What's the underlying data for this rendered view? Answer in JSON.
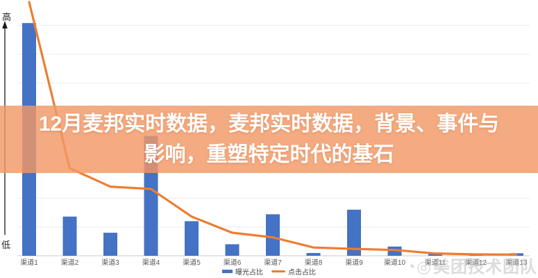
{
  "banner": {
    "line1": "12月麦邦实时数据，麦邦实时数据，背景、事件与",
    "line2": "影响，重塑特定时代的基石",
    "bg_color": "rgba(242,152,102,0.82)",
    "text_color": "#ffffff"
  },
  "axis": {
    "high_label": "高",
    "low_label": "低"
  },
  "watermark": {
    "icons": "◔◎",
    "text": "美团技术团队"
  },
  "chart_data": {
    "type": "bar",
    "note": "combo chart: blue bars + orange line, qualitative y-axis from 低 (bottom) to 高 (top), values normalized 0-100",
    "categories": [
      "渠道1",
      "渠道2",
      "渠道3",
      "渠道4",
      "渠道5",
      "渠道6",
      "渠道7",
      "渠道8",
      "渠道9",
      "渠道10",
      "渠道11",
      "渠道12",
      "渠道13"
    ],
    "series": [
      {
        "name": "曝光占比",
        "type": "bar",
        "color": "#4472C4",
        "values": [
          101,
          17,
          10,
          52,
          15,
          5,
          18,
          1.2,
          20,
          4,
          1.4,
          1,
          1.1
        ]
      },
      {
        "name": "点击占比",
        "type": "line",
        "color": "#ED7D31",
        "values": [
          112,
          38,
          30,
          29,
          17,
          10,
          8,
          3.6,
          3,
          2.5,
          1,
          0.6,
          0.5
        ]
      }
    ],
    "title": "",
    "xlabel": "",
    "ylabel": "",
    "ylim": [
      0,
      100
    ],
    "grid": true,
    "gridline_count": 9,
    "legend_position": "bottom",
    "colors": {
      "gridline": "#EBEBEB",
      "baseline": "#C9C9C9",
      "tick_label": "#595959",
      "axis_arrow": "#1a1a1a"
    }
  }
}
